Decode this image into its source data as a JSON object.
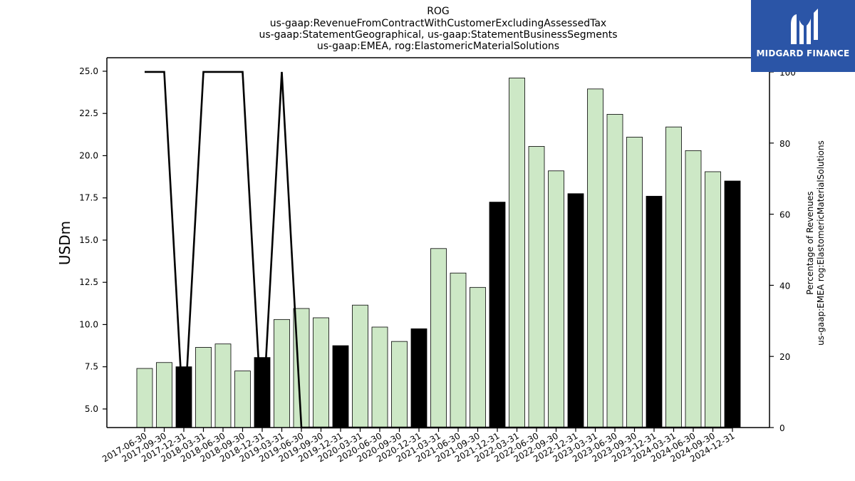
{
  "brand": {
    "name": "MIDGARD FINANCE",
    "color": "#2b55a7"
  },
  "colors": {
    "bar_light": "#cde8c6",
    "bar_dark": "#000000",
    "line": "#000000"
  },
  "chart_data": {
    "type": "bar",
    "title_lines": [
      "ROG",
      "us-gaap:RevenueFromContractWithCustomerExcludingAssessedTax",
      "us-gaap:StatementGeographical, us-gaap:StatementBusinessSegments",
      "us-gaap:EMEA, rog:ElastomericMaterialSolutions"
    ],
    "ylabel": "USDm",
    "y2label_lines": [
      "Percentage of Revenues",
      "us-gaap:EMEA rog:ElastomericMaterialSolutions"
    ],
    "ylim": [
      3.9,
      25.8
    ],
    "y2lim": [
      0,
      104
    ],
    "yticks": [
      "5.0",
      "7.5",
      "10.0",
      "12.5",
      "15.0",
      "17.5",
      "20.0",
      "22.5",
      "25.0"
    ],
    "y2ticks": [
      "0",
      "20",
      "40",
      "60",
      "80",
      "100"
    ],
    "categories": [
      "2017-06-30",
      "2017-09-30",
      "2017-12-31",
      "2018-03-31",
      "2018-06-30",
      "2018-09-30",
      "2018-12-31",
      "2019-03-31",
      "2019-06-30",
      "2019-09-30",
      "2019-12-31",
      "2020-03-31",
      "2020-06-30",
      "2020-09-30",
      "2020-12-31",
      "2021-03-31",
      "2021-06-30",
      "2021-09-30",
      "2021-12-31",
      "2022-03-31",
      "2022-06-30",
      "2022-09-30",
      "2022-12-31",
      "2023-03-31",
      "2023-06-30",
      "2023-09-30",
      "2023-12-31",
      "2024-03-31",
      "2024-06-30",
      "2024-09-30",
      "2024-12-31"
    ],
    "series": [
      {
        "values": [
          7.4,
          7.75,
          7.5,
          8.65,
          8.85,
          7.25,
          8.05,
          10.3,
          10.95,
          10.4,
          8.75,
          11.15,
          9.85,
          9.0,
          9.75,
          14.5,
          13.05,
          12.2,
          17.25,
          24.6,
          20.55,
          19.1,
          17.75,
          23.95,
          22.45,
          21.1,
          17.6,
          21.7,
          20.3,
          19.05,
          18.5
        ],
        "highlight": [
          false,
          false,
          true,
          false,
          false,
          false,
          true,
          false,
          false,
          false,
          true,
          false,
          false,
          false,
          true,
          false,
          false,
          false,
          true,
          false,
          false,
          false,
          true,
          false,
          false,
          false,
          true,
          false,
          false,
          false,
          true
        ]
      }
    ],
    "percent_line": [
      100,
      100,
      0,
      100,
      100,
      100,
      0,
      100,
      0,
      0,
      0,
      0,
      0,
      0,
      0,
      0,
      0,
      0,
      0,
      0,
      0,
      0,
      0,
      0,
      0,
      0,
      0,
      0,
      0,
      0,
      0
    ]
  }
}
